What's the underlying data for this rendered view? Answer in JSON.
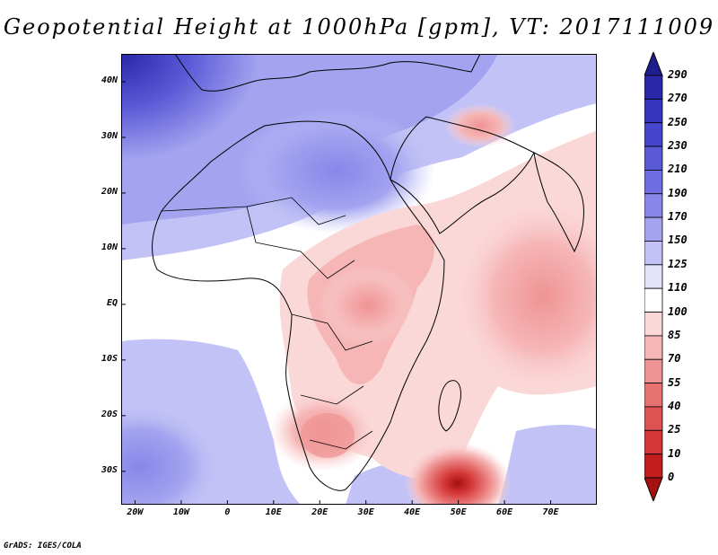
{
  "title": "Geopotential Height at 1000hPa [gpm], VT: 2017111009",
  "credit": "GrADS: IGES/COLA",
  "map": {
    "lon_range": [
      -23,
      80
    ],
    "lat_range": [
      -36,
      45
    ],
    "lat_ticks": [
      {
        "value": 40,
        "label": "40N"
      },
      {
        "value": 30,
        "label": "30N"
      },
      {
        "value": 20,
        "label": "20N"
      },
      {
        "value": 10,
        "label": "10N"
      },
      {
        "value": 0,
        "label": "EQ"
      },
      {
        "value": -10,
        "label": "10S"
      },
      {
        "value": -20,
        "label": "20S"
      },
      {
        "value": -30,
        "label": "30S"
      }
    ],
    "lon_ticks": [
      {
        "value": -20,
        "label": "20W"
      },
      {
        "value": -10,
        "label": "10W"
      },
      {
        "value": 0,
        "label": "0"
      },
      {
        "value": 10,
        "label": "10E"
      },
      {
        "value": 20,
        "label": "20E"
      },
      {
        "value": 30,
        "label": "30E"
      },
      {
        "value": 40,
        "label": "40E"
      },
      {
        "value": 50,
        "label": "50E"
      },
      {
        "value": 60,
        "label": "60E"
      },
      {
        "value": 70,
        "label": "70E"
      }
    ],
    "field_features": [
      {
        "feature": "high over Mediterranean / Europe",
        "lon": -18,
        "lat": 44,
        "value": 270
      },
      {
        "feature": "Saharan high",
        "lon": 15,
        "lat": 25,
        "value": 190
      },
      {
        "feature": "South Atlantic high",
        "lon": -20,
        "lat": -30,
        "value": 170
      },
      {
        "feature": "East African low",
        "lon": 30,
        "lat": 0,
        "value": 70
      },
      {
        "feature": "Southern Africa heat low",
        "lon": 23,
        "lat": -22,
        "value": 55
      },
      {
        "feature": "Indian Ocean low",
        "lon": 70,
        "lat": 5,
        "value": 70
      },
      {
        "feature": "Arabian low",
        "lon": 55,
        "lat": 30,
        "value": 85
      },
      {
        "feature": "cut-off low",
        "lon": 50,
        "lat": -33,
        "value": 0
      }
    ]
  },
  "colorbar": {
    "levels": [
      "290",
      "270",
      "250",
      "230",
      "210",
      "190",
      "170",
      "150",
      "125",
      "110",
      "100",
      "85",
      "70",
      "55",
      "40",
      "25",
      "10",
      "0"
    ],
    "colors": [
      "#1e1e8c",
      "#2828a8",
      "#3434bd",
      "#4646cc",
      "#5a5ad7",
      "#6e6ee2",
      "#8787ea",
      "#a3a3f0",
      "#c2c2f6",
      "#e2e2fb",
      "#ffffff",
      "#fbd8d8",
      "#f6b6b6",
      "#ef9494",
      "#e77272",
      "#df5252",
      "#d43636",
      "#c21e1e",
      "#a51010"
    ]
  }
}
